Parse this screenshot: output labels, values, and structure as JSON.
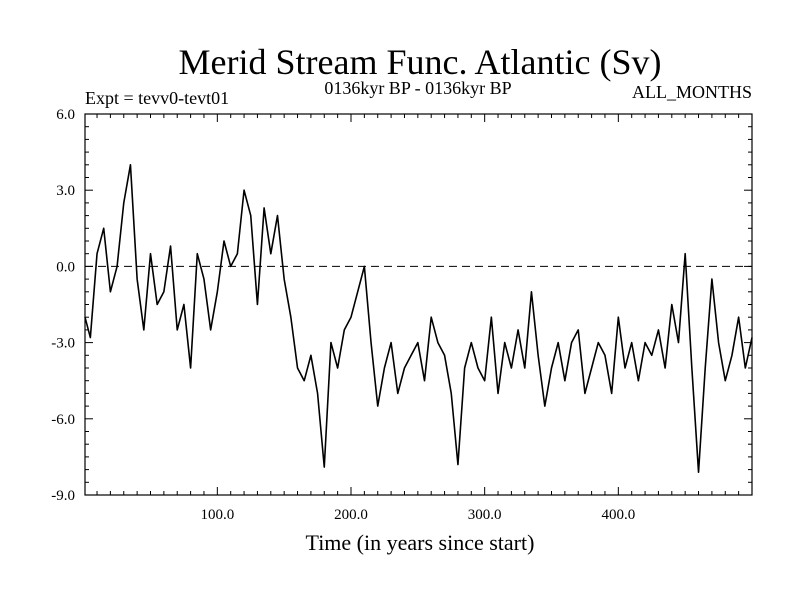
{
  "chart_data": {
    "type": "line",
    "title": "Merid Stream Func. Atlantic (Sv)",
    "subtitle_left": "Expt = tevv0-tevt01",
    "subtitle_center": "0136kyr BP - 0136kyr BP",
    "subtitle_right": "ALL_MONTHS",
    "xlabel": "Time (in years since start)",
    "ylabel": "",
    "xlim": [
      1,
      500
    ],
    "ylim": [
      -9.0,
      6.0
    ],
    "x_ticks": [
      100,
      200,
      300,
      400
    ],
    "x_tick_labels": [
      "100.0",
      "200.0",
      "300.0",
      "400.0"
    ],
    "y_ticks": [
      6.0,
      3.0,
      0.0,
      -3.0,
      -6.0,
      -9.0
    ],
    "y_tick_labels": [
      "6.0",
      "3.0",
      "0.0",
      "-3.0",
      "-6.0",
      "-9.0"
    ],
    "reference_line": {
      "y": 0.0,
      "style": "dashed"
    },
    "grid": false,
    "series": [
      {
        "x": [
          1,
          5,
          10,
          15,
          20,
          25,
          30,
          35,
          40,
          45,
          50,
          55,
          60,
          65,
          70,
          75,
          80,
          85,
          90,
          95,
          100,
          105,
          110,
          115,
          120,
          125,
          130,
          135,
          140,
          145,
          150,
          155,
          160,
          165,
          170,
          175,
          180,
          185,
          190,
          195,
          200,
          205,
          210,
          215,
          220,
          225,
          230,
          235,
          240,
          245,
          250,
          255,
          260,
          265,
          270,
          275,
          280,
          285,
          290,
          295,
          300,
          305,
          310,
          315,
          320,
          325,
          330,
          335,
          340,
          345,
          350,
          355,
          360,
          365,
          370,
          375,
          380,
          385,
          390,
          395,
          400,
          405,
          410,
          415,
          420,
          425,
          430,
          435,
          440,
          445,
          450,
          455,
          460,
          465,
          470,
          475,
          480,
          485,
          490,
          495,
          500
        ],
        "y": [
          -2.0,
          -2.8,
          0.5,
          1.5,
          -1.0,
          0.0,
          2.5,
          4.0,
          -0.5,
          -2.5,
          0.5,
          -1.5,
          -1.0,
          0.8,
          -2.5,
          -1.5,
          -4.0,
          0.5,
          -0.5,
          -2.5,
          -1.0,
          1.0,
          0.0,
          0.5,
          3.0,
          2.0,
          -1.5,
          2.3,
          0.5,
          2.0,
          -0.5,
          -2.0,
          -4.0,
          -4.5,
          -3.5,
          -5.0,
          -7.9,
          -3.0,
          -4.0,
          -2.5,
          -2.0,
          -1.0,
          0.0,
          -3.0,
          -5.5,
          -4.0,
          -3.0,
          -5.0,
          -4.0,
          -3.5,
          -3.0,
          -4.5,
          -2.0,
          -3.0,
          -3.5,
          -5.0,
          -7.8,
          -4.0,
          -3.0,
          -4.0,
          -4.5,
          -2.0,
          -5.0,
          -3.0,
          -4.0,
          -2.5,
          -4.0,
          -1.0,
          -3.5,
          -5.5,
          -4.0,
          -3.0,
          -4.5,
          -3.0,
          -2.5,
          -5.0,
          -4.0,
          -3.0,
          -3.5,
          -5.0,
          -2.0,
          -4.0,
          -3.0,
          -4.5,
          -3.0,
          -3.5,
          -2.5,
          -4.0,
          -1.5,
          -3.0,
          0.5,
          -4.0,
          -8.1,
          -4.0,
          -0.5,
          -3.0,
          -4.5,
          -3.5,
          -2.0,
          -4.0,
          -2.8
        ]
      }
    ]
  }
}
